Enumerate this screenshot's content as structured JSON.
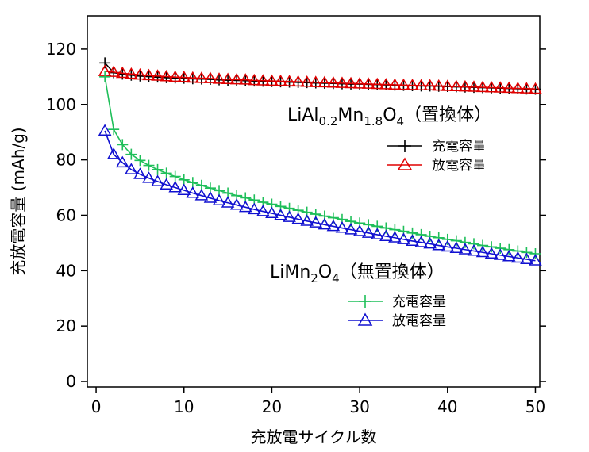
{
  "chart_data": {
    "type": "line",
    "xlabel": "充放電サイクル数",
    "ylabel": "充放電容量 (mAh/g)",
    "xlim": [
      -1,
      50.5
    ],
    "ylim": [
      -2,
      132
    ],
    "x_ticks": [
      0,
      10,
      20,
      30,
      40,
      50
    ],
    "y_ticks": [
      0,
      20,
      40,
      60,
      80,
      100,
      120
    ],
    "grid": false,
    "legend_groups": [
      {
        "title_parts": [
          {
            "text": "LiAl",
            "sub": false
          },
          {
            "text": "0.2",
            "sub": true
          },
          {
            "text": "Mn",
            "sub": false
          },
          {
            "text": "1.8",
            "sub": true
          },
          {
            "text": "O",
            "sub": false
          },
          {
            "text": "4",
            "sub": true
          },
          {
            "text": "（置換体）",
            "sub": false
          }
        ],
        "entries": [
          {
            "label": "充電容量",
            "series": 0
          },
          {
            "label": "放電容量",
            "series": 1
          }
        ]
      },
      {
        "title_parts": [
          {
            "text": "LiMn",
            "sub": false
          },
          {
            "text": "2",
            "sub": true
          },
          {
            "text": "O",
            "sub": false
          },
          {
            "text": "4",
            "sub": true
          },
          {
            "text": "（無置換体）",
            "sub": false
          }
        ],
        "entries": [
          {
            "label": "充電容量",
            "series": 2
          },
          {
            "label": "放電容量",
            "series": 3
          }
        ]
      }
    ],
    "series": [
      {
        "color": "#000000",
        "marker": "plus",
        "x": [
          1,
          2,
          3,
          4,
          5,
          6,
          7,
          8,
          9,
          10,
          11,
          12,
          13,
          14,
          15,
          16,
          17,
          18,
          19,
          20,
          21,
          22,
          23,
          24,
          25,
          26,
          27,
          28,
          29,
          30,
          31,
          32,
          33,
          34,
          35,
          36,
          37,
          38,
          39,
          40,
          41,
          42,
          43,
          44,
          45,
          46,
          47,
          48,
          49,
          50
        ],
        "y": [
          115,
          111.5,
          111,
          110.6,
          110.3,
          110.1,
          109.9,
          109.7,
          109.6,
          109.5,
          109.3,
          109.2,
          109.1,
          108.9,
          108.8,
          108.7,
          108.6,
          108.5,
          108.4,
          108.3,
          108.2,
          108.1,
          108,
          107.9,
          107.8,
          107.7,
          107.6,
          107.5,
          107.4,
          107.4,
          107.3,
          107.2,
          107.1,
          107,
          106.9,
          106.8,
          106.7,
          106.7,
          106.6,
          106.5,
          106.4,
          106.3,
          106.2,
          106.1,
          106,
          105.9,
          105.8,
          105.7,
          105.6,
          105.5
        ]
      },
      {
        "color": "#e00000",
        "marker": "triangle",
        "x": [
          1,
          2,
          3,
          4,
          5,
          6,
          7,
          8,
          9,
          10,
          11,
          12,
          13,
          14,
          15,
          16,
          17,
          18,
          19,
          20,
          21,
          22,
          23,
          24,
          25,
          26,
          27,
          28,
          29,
          30,
          31,
          32,
          33,
          34,
          35,
          36,
          37,
          38,
          39,
          40,
          41,
          42,
          43,
          44,
          45,
          46,
          47,
          48,
          49,
          50
        ],
        "y": [
          112,
          111.7,
          111.3,
          111,
          110.7,
          110.5,
          110.3,
          110.1,
          109.9,
          109.8,
          109.6,
          109.5,
          109.4,
          109.2,
          109.1,
          109,
          108.9,
          108.7,
          108.6,
          108.5,
          108.4,
          108.3,
          108.2,
          108.1,
          108,
          107.9,
          107.8,
          107.7,
          107.6,
          107.5,
          107.4,
          107.3,
          107.2,
          107.1,
          107,
          106.9,
          106.8,
          106.8,
          106.7,
          106.6,
          106.5,
          106.4,
          106.3,
          106.2,
          106.1,
          106,
          105.9,
          105.8,
          105.7,
          105.6
        ]
      },
      {
        "color": "#1fbf5a",
        "marker": "plus",
        "x": [
          1,
          2,
          3,
          4,
          5,
          6,
          7,
          8,
          9,
          10,
          11,
          12,
          13,
          14,
          15,
          16,
          17,
          18,
          19,
          20,
          21,
          22,
          23,
          24,
          25,
          26,
          27,
          28,
          29,
          30,
          31,
          32,
          33,
          34,
          35,
          36,
          37,
          38,
          39,
          40,
          41,
          42,
          43,
          44,
          45,
          46,
          47,
          48,
          49,
          50
        ],
        "y": [
          110,
          91,
          85.5,
          82,
          79.8,
          78,
          76.5,
          75.2,
          74,
          72.8,
          71.8,
          70.8,
          69.8,
          68.9,
          68,
          67.1,
          66.3,
          65.5,
          64.7,
          64,
          63.2,
          62.5,
          61.8,
          61.1,
          60.4,
          59.7,
          59.1,
          58.5,
          57.8,
          57.2,
          56.6,
          56,
          55.4,
          54.8,
          54.2,
          53.6,
          53,
          52.4,
          51.9,
          51.3,
          50.8,
          50.2,
          49.7,
          49.1,
          48.6,
          48.1,
          47.6,
          47.1,
          46.6,
          46.1
        ]
      },
      {
        "color": "#1010d0",
        "marker": "triangle",
        "x": [
          1,
          2,
          3,
          4,
          5,
          6,
          7,
          8,
          9,
          10,
          11,
          12,
          13,
          14,
          15,
          16,
          17,
          18,
          19,
          20,
          21,
          22,
          23,
          24,
          25,
          26,
          27,
          28,
          29,
          30,
          31,
          32,
          33,
          34,
          35,
          36,
          37,
          38,
          39,
          40,
          41,
          42,
          43,
          44,
          45,
          46,
          47,
          48,
          49,
          50
        ],
        "y": [
          90.5,
          82,
          79,
          76.5,
          74.8,
          73.4,
          72.2,
          71,
          70,
          69,
          68,
          67.1,
          66.2,
          65.3,
          64.5,
          63.7,
          62.9,
          62.1,
          61.4,
          60.7,
          60,
          59.3,
          58.6,
          57.9,
          57.3,
          56.6,
          56,
          55.4,
          54.8,
          54.2,
          53.6,
          53,
          52.4,
          51.9,
          51.3,
          50.7,
          50.2,
          49.7,
          49.1,
          48.6,
          48.1,
          47.6,
          47.1,
          46.6,
          46.1,
          45.6,
          45.1,
          44.6,
          44.1,
          43.6
        ]
      }
    ]
  }
}
